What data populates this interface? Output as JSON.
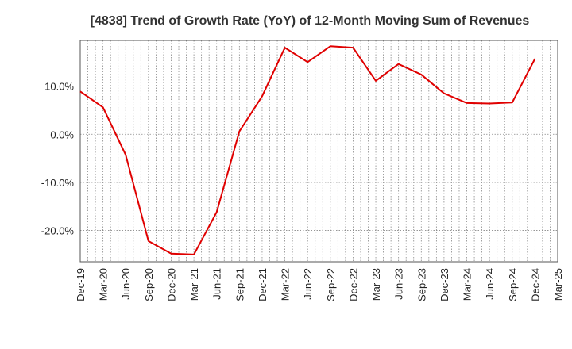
{
  "chart_data": {
    "type": "line",
    "title": "[4838]  Trend of Growth Rate (YoY) of 12-Month Moving Sum of Revenues",
    "xlabel": "",
    "ylabel": "",
    "x_tick_labels": [
      "Dec-19",
      "Mar-20",
      "Jun-20",
      "Sep-20",
      "Dec-20",
      "Mar-21",
      "Jun-21",
      "Sep-21",
      "Dec-21",
      "Mar-22",
      "Jun-22",
      "Sep-22",
      "Dec-22",
      "Mar-23",
      "Jun-23",
      "Sep-23",
      "Dec-23",
      "Mar-24",
      "Jun-24",
      "Sep-24",
      "Dec-24",
      "Mar-25"
    ],
    "y_ticks": [
      10,
      0,
      -10,
      -20
    ],
    "y_tick_labels": [
      "10.0%",
      "0.0%",
      "-10.0%",
      "-20.0%"
    ],
    "ylim": [
      -26.5,
      19.5
    ],
    "grid": true,
    "line_color": "#e00000",
    "series": [
      {
        "x": [
          "Dec-19",
          "Mar-20",
          "Jun-20",
          "Sep-20",
          "Dec-20",
          "Mar-21",
          "Jun-21",
          "Sep-21",
          "Dec-21",
          "Mar-22",
          "Jun-22",
          "Sep-22",
          "Dec-22",
          "Mar-23",
          "Jun-23",
          "Sep-23",
          "Dec-23",
          "Mar-24",
          "Jun-24",
          "Sep-24",
          "Dec-24"
        ],
        "values": [
          8.9,
          5.6,
          -4.3,
          -22.2,
          -24.8,
          -25.0,
          -16.2,
          0.6,
          7.9,
          18.0,
          15.0,
          18.3,
          18.0,
          11.1,
          14.6,
          12.4,
          8.5,
          6.5,
          6.4,
          6.6,
          15.7
        ]
      }
    ]
  }
}
